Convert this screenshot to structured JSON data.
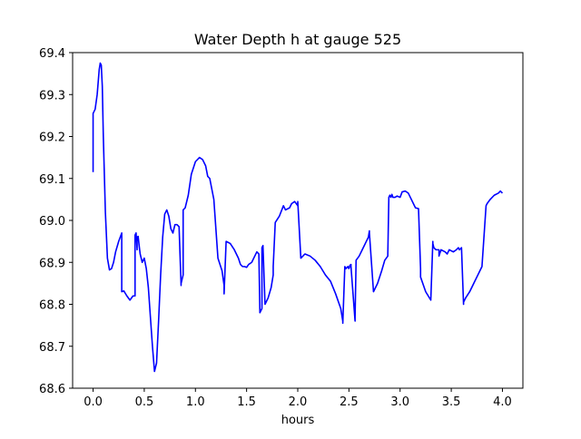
{
  "chart_data": {
    "type": "line",
    "title": "Water Depth h at gauge 525",
    "xlabel": "hours",
    "ylabel": "",
    "xlim": [
      -0.2,
      4.2
    ],
    "ylim": [
      68.6,
      69.4
    ],
    "x_ticks": [
      0.0,
      0.5,
      1.0,
      1.5,
      2.0,
      2.5,
      3.0,
      3.5,
      4.0
    ],
    "x_tick_labels": [
      "0.0",
      "0.5",
      "1.0",
      "1.5",
      "2.0",
      "2.5",
      "3.0",
      "3.5",
      "4.0"
    ],
    "y_ticks": [
      68.6,
      68.7,
      68.8,
      68.9,
      69.0,
      69.1,
      69.2,
      69.3,
      69.4
    ],
    "y_tick_labels": [
      "68.6",
      "68.7",
      "68.8",
      "68.9",
      "69.0",
      "69.1",
      "69.2",
      "69.3",
      "69.4"
    ],
    "grid": false,
    "legend": "none",
    "line_color": "#0000ff",
    "series": [
      {
        "x": [
          0.0,
          0.0,
          0.02,
          0.04,
          0.06,
          0.07,
          0.08,
          0.09,
          0.1,
          0.12,
          0.14,
          0.16,
          0.18,
          0.2,
          0.22,
          0.25,
          0.28,
          0.28,
          0.3,
          0.33,
          0.36,
          0.39,
          0.41,
          0.41,
          0.42,
          0.43,
          0.43,
          0.44,
          0.45,
          0.46,
          0.48,
          0.5,
          0.52,
          0.54,
          0.56,
          0.58,
          0.6,
          0.62,
          0.64,
          0.66,
          0.68,
          0.7,
          0.72,
          0.74,
          0.76,
          0.78,
          0.8,
          0.82,
          0.84,
          0.86,
          0.86,
          0.88,
          0.88,
          0.9,
          0.93,
          0.96,
          1.0,
          1.04,
          1.07,
          1.1,
          1.12,
          1.14,
          1.14,
          1.18,
          1.22,
          1.26,
          1.28,
          1.28,
          1.3,
          1.34,
          1.38,
          1.42,
          1.44,
          1.46,
          1.48,
          1.5,
          1.52,
          1.55,
          1.58,
          1.6,
          1.62,
          1.62,
          1.63,
          1.65,
          1.65,
          1.66,
          1.68,
          1.71,
          1.74,
          1.76,
          1.76,
          1.78,
          1.82,
          1.86,
          1.88,
          1.92,
          1.94,
          1.97,
          2.0,
          2.0,
          2.03,
          2.07,
          2.12,
          2.17,
          2.22,
          2.27,
          2.32,
          2.37,
          2.42,
          2.44,
          2.44,
          2.46,
          2.47,
          2.49,
          2.5,
          2.51,
          2.52,
          2.52,
          2.56,
          2.56,
          2.57,
          2.6,
          2.63,
          2.66,
          2.69,
          2.7,
          2.7,
          2.74,
          2.78,
          2.82,
          2.85,
          2.88,
          2.88,
          2.89,
          2.9,
          2.91,
          2.92,
          2.93,
          2.95,
          2.97,
          3.0,
          3.02,
          3.05,
          3.08,
          3.12,
          3.15,
          3.18,
          3.2,
          3.2,
          3.25,
          3.3,
          3.32,
          3.32,
          3.33,
          3.35,
          3.38,
          3.38,
          3.4,
          3.44,
          3.46,
          3.48,
          3.52,
          3.55,
          3.57,
          3.58,
          3.6,
          3.62,
          3.62,
          3.64,
          3.68,
          3.72,
          3.76,
          3.8,
          3.84,
          3.84,
          3.85,
          3.88,
          3.92,
          3.96,
          3.98,
          4.0
        ],
        "y": [
          69.115,
          69.255,
          69.265,
          69.3,
          69.36,
          69.375,
          69.37,
          69.32,
          69.2,
          69.02,
          68.91,
          68.882,
          68.885,
          68.9,
          68.925,
          68.95,
          68.97,
          68.83,
          68.832,
          68.82,
          68.81,
          68.82,
          68.82,
          68.965,
          68.97,
          68.93,
          68.96,
          68.962,
          68.94,
          68.92,
          68.9,
          68.91,
          68.885,
          68.84,
          68.77,
          68.7,
          68.64,
          68.66,
          68.76,
          68.87,
          68.96,
          69.015,
          69.025,
          69.01,
          68.98,
          68.97,
          68.99,
          68.99,
          68.985,
          68.845,
          68.85,
          68.87,
          69.025,
          69.03,
          69.06,
          69.11,
          69.14,
          69.15,
          69.145,
          69.13,
          69.105,
          69.1,
          69.1,
          69.05,
          68.91,
          68.88,
          68.845,
          68.825,
          68.95,
          68.945,
          68.93,
          68.91,
          68.895,
          68.89,
          68.89,
          68.888,
          68.895,
          68.9,
          68.915,
          68.925,
          68.92,
          68.92,
          68.78,
          68.79,
          68.935,
          68.94,
          68.8,
          68.815,
          68.84,
          68.87,
          68.89,
          68.995,
          69.01,
          69.035,
          69.025,
          69.03,
          69.04,
          69.045,
          69.035,
          69.045,
          68.91,
          68.92,
          68.915,
          68.905,
          68.89,
          68.87,
          68.855,
          68.825,
          68.79,
          68.76,
          68.755,
          68.89,
          68.885,
          68.89,
          68.885,
          68.893,
          68.895,
          68.89,
          68.76,
          68.77,
          68.905,
          68.915,
          68.93,
          68.945,
          68.96,
          68.975,
          68.97,
          68.83,
          68.85,
          68.88,
          68.905,
          68.915,
          68.92,
          69.055,
          69.06,
          69.055,
          69.062,
          69.055,
          69.055,
          69.058,
          69.055,
          69.068,
          69.07,
          69.065,
          69.045,
          69.03,
          69.028,
          68.885,
          68.865,
          68.83,
          68.81,
          68.95,
          68.945,
          68.935,
          68.93,
          68.93,
          68.915,
          68.93,
          68.925,
          68.92,
          68.93,
          68.925,
          68.93,
          68.935,
          68.93,
          68.935,
          68.8,
          68.805,
          68.815,
          68.83,
          68.85,
          68.87,
          68.89,
          69.035,
          69.035,
          69.04,
          69.05,
          69.06,
          69.065,
          69.07,
          69.065
        ]
      }
    ]
  }
}
